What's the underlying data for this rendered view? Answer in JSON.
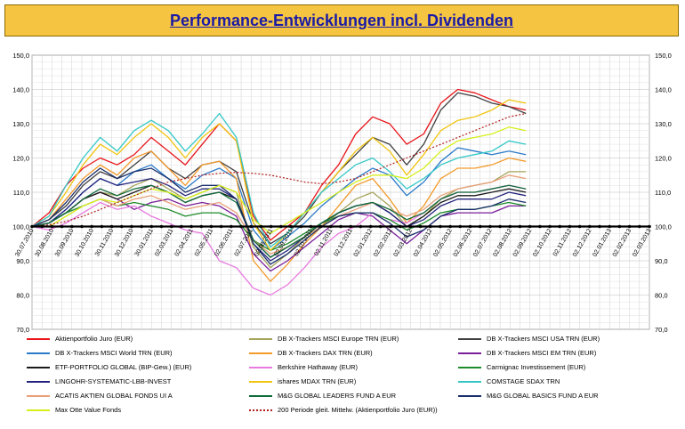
{
  "title": "Performance-Entwicklungen incl. Dividenden",
  "chart_data": {
    "type": "line",
    "title": "Performance-Entwicklungen incl. Dividenden",
    "ylim": [
      70,
      150
    ],
    "y_ticks": [
      "70,0",
      "80,0",
      "90,0",
      "100,0",
      "110,0",
      "120,0",
      "130,0",
      "140,0",
      "150,0"
    ],
    "x_ticks": [
      "30.07.2010",
      "30.08.2010",
      "30.09.2010",
      "30.10.2010",
      "30.11.2010",
      "30.12.2010",
      "30.01.2011",
      "02.03.2011",
      "02.04.2011",
      "02.05.2011",
      "02.06.2011",
      "02.07.2011",
      "02.08.2011",
      "02.09.2011",
      "02.10.2011",
      "02.11.2011",
      "02.12.2011",
      "02.01.2012",
      "02.02.2012",
      "02.03.2012",
      "02.04.2012",
      "02.05.2012",
      "02.06.2012",
      "02.07.2012",
      "02.08.2012",
      "02.09.2012",
      "02.10.2012",
      "02.11.2012",
      "02.12.2012",
      "02.01.2013",
      "02.02.2013",
      "02.03.2013"
    ],
    "grid": true,
    "baseline": 100,
    "legend_position": "bottom",
    "series": [
      {
        "name": "Aktienportfolio Juro (EUR)",
        "color": "#e8141a",
        "values": [
          100,
          104,
          112,
          117,
          120,
          118,
          121,
          126,
          122,
          118,
          124,
          130,
          125,
          103,
          96,
          100,
          104,
          112,
          118,
          127,
          132,
          130,
          124,
          127,
          136,
          140,
          139,
          137,
          135,
          134
        ]
      },
      {
        "name": "DB X-Trackers MSCI Europe TRN (EUR)",
        "color": "#a4a35a",
        "values": [
          100,
          101,
          104,
          108,
          110,
          109,
          112,
          114,
          111,
          108,
          110,
          112,
          110,
          94,
          88,
          92,
          97,
          100,
          104,
          108,
          110,
          106,
          100,
          103,
          108,
          111,
          112,
          113,
          116,
          116
        ]
      },
      {
        "name": "DB X-Trackers MSCI USA TRN (EUR)",
        "color": "#404040",
        "values": [
          100,
          102,
          106,
          112,
          116,
          114,
          118,
          122,
          117,
          114,
          118,
          119,
          116,
          101,
          95,
          98,
          103,
          110,
          116,
          121,
          126,
          124,
          118,
          124,
          134,
          139,
          138,
          136,
          135,
          133
        ]
      },
      {
        "name": "DB X-Trackers MSCI World TRN (EUR)",
        "color": "#2a7ac8",
        "values": [
          100,
          101,
          105,
          110,
          114,
          112,
          116,
          118,
          114,
          111,
          115,
          117,
          114,
          99,
          93,
          97,
          101,
          106,
          110,
          114,
          117,
          115,
          109,
          113,
          119,
          123,
          122,
          121,
          122,
          121
        ]
      },
      {
        "name": "DB X-Trackers DAX TRN (EUR)",
        "color": "#f39a2b",
        "values": [
          100,
          102,
          108,
          114,
          118,
          115,
          120,
          122,
          117,
          112,
          118,
          119,
          114,
          90,
          84,
          89,
          95,
          100,
          106,
          112,
          114,
          108,
          101,
          106,
          114,
          117,
          117,
          118,
          120,
          119
        ]
      },
      {
        "name": "DB X-Trackers  MSCI EM TRN (EUR)",
        "color": "#7a1f9a",
        "values": [
          100,
          101,
          104,
          108,
          110,
          108,
          105,
          107,
          108,
          106,
          107,
          106,
          103,
          92,
          87,
          90,
          94,
          98,
          102,
          104,
          103,
          99,
          95,
          99,
          103,
          104,
          104,
          104,
          106,
          106
        ]
      },
      {
        "name": "ETF-PORTFOLIO GLOBAL (BIP-Gew.) (EUR)",
        "color": "#1a1a1a",
        "values": [
          100,
          101,
          104,
          108,
          110,
          108,
          110,
          112,
          110,
          107,
          109,
          110,
          108,
          96,
          91,
          94,
          97,
          101,
          104,
          106,
          107,
          104,
          100,
          103,
          107,
          109,
          109,
          110,
          111,
          110
        ]
      },
      {
        "name": "Berkshire Hathaway (EUR)",
        "color": "#e87be0",
        "values": [
          100,
          99,
          101,
          104,
          107,
          105,
          106,
          103,
          101,
          99,
          98,
          90,
          88,
          82,
          80,
          83,
          88,
          94,
          98,
          100,
          104,
          102,
          101,
          104,
          108,
          110,
          110,
          111,
          112,
          111
        ]
      },
      {
        "name": "Carmignac Investissement (EUR)",
        "color": "#1e8b2a",
        "values": [
          100,
          101,
          104,
          106,
          108,
          106,
          107,
          106,
          105,
          103,
          104,
          104,
          102,
          96,
          93,
          95,
          98,
          101,
          103,
          104,
          104,
          102,
          99,
          101,
          104,
          105,
          105,
          106,
          107,
          106
        ]
      },
      {
        "name": "LINGOHR-SYSTEMATIC-LBB-INVEST",
        "color": "#24247e",
        "values": [
          100,
          101,
          105,
          110,
          114,
          112,
          113,
          114,
          112,
          109,
          111,
          111,
          108,
          95,
          90,
          93,
          97,
          101,
          104,
          106,
          107,
          104,
          100,
          102,
          106,
          108,
          108,
          108,
          110,
          109
        ]
      },
      {
        "name": "ishares MDAX TRN (EUR)",
        "color": "#f1c40f",
        "values": [
          100,
          103,
          110,
          118,
          124,
          121,
          126,
          130,
          126,
          120,
          126,
          130,
          125,
          101,
          93,
          98,
          104,
          110,
          116,
          122,
          126,
          122,
          115,
          121,
          128,
          131,
          132,
          134,
          137,
          136
        ]
      },
      {
        "name": "COMSTAGE SDAX TRN",
        "color": "#35c7c7",
        "values": [
          100,
          103,
          112,
          120,
          126,
          122,
          128,
          131,
          128,
          122,
          127,
          133,
          126,
          104,
          94,
          98,
          104,
          110,
          114,
          118,
          120,
          116,
          111,
          114,
          118,
          120,
          121,
          122,
          125,
          124
        ]
      },
      {
        "name": "ACATIS AKTIEN GLOBAL FONDS UI A",
        "color": "#e8a078",
        "values": [
          100,
          100,
          103,
          106,
          108,
          106,
          108,
          109,
          107,
          105,
          106,
          107,
          104,
          96,
          92,
          94,
          97,
          100,
          103,
          105,
          107,
          105,
          103,
          105,
          109,
          111,
          112,
          113,
          115,
          114
        ]
      },
      {
        "name": "M&G GLOBAL LEADERS FUND A EUR",
        "color": "#0f6b3a",
        "values": [
          100,
          101,
          104,
          108,
          111,
          109,
          111,
          112,
          110,
          107,
          109,
          110,
          107,
          96,
          91,
          94,
          97,
          101,
          104,
          106,
          107,
          105,
          102,
          104,
          108,
          110,
          110,
          111,
          112,
          111
        ]
      },
      {
        "name": "M&G GLOBAL BASICS FUND A EUR",
        "color": "#1a2f6b",
        "values": [
          100,
          102,
          107,
          113,
          117,
          114,
          116,
          117,
          114,
          110,
          112,
          112,
          108,
          95,
          89,
          92,
          96,
          100,
          103,
          104,
          104,
          101,
          97,
          99,
          103,
          105,
          105,
          106,
          108,
          107
        ]
      },
      {
        "name": "Max Otte Value Fonds",
        "color": "#d6ef1a",
        "values": [
          100,
          100,
          103,
          106,
          108,
          107,
          109,
          111,
          110,
          108,
          110,
          112,
          110,
          102,
          98,
          101,
          104,
          107,
          110,
          113,
          115,
          115,
          114,
          117,
          122,
          125,
          126,
          127,
          129,
          128
        ]
      },
      {
        "name": "200 Periode gleit. Mittelw. (Aktienportfolio Juro (EUR))",
        "color": "#b02020",
        "dashed": true,
        "values": [
          100,
          100.5,
          101.5,
          103,
          105,
          107,
          109,
          111,
          113,
          114,
          115,
          115.5,
          115.8,
          115.5,
          115,
          114,
          113,
          112.5,
          113,
          114,
          116,
          118,
          120,
          122,
          124,
          126,
          128,
          130,
          132,
          133
        ]
      }
    ]
  }
}
